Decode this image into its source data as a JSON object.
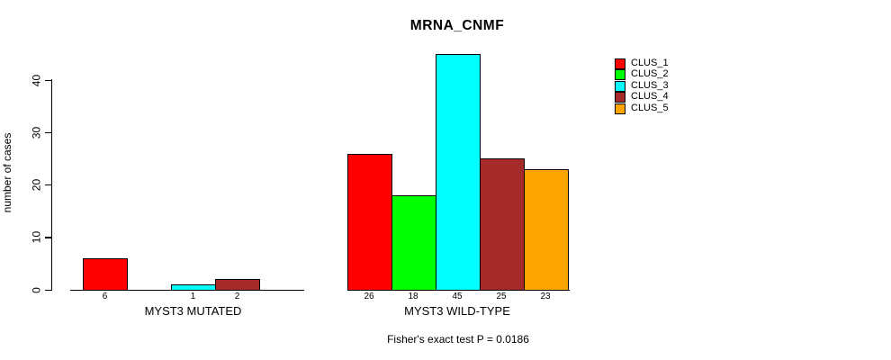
{
  "chart_data": {
    "type": "bar",
    "title": "MRNA_CNMF",
    "ylabel": "number of cases",
    "xlabel": "",
    "ylim": [
      0,
      46
    ],
    "yticks": [
      0,
      10,
      20,
      30,
      40
    ],
    "grid": false,
    "legend_position": "right",
    "legend": [
      {
        "label": "CLUS_1",
        "color": "#FF0000"
      },
      {
        "label": "CLUS_2",
        "color": "#00FF00"
      },
      {
        "label": "CLUS_3",
        "color": "#00FFFF"
      },
      {
        "label": "CLUS_4",
        "color": "#A52A2A"
      },
      {
        "label": "CLUS_5",
        "color": "#FFA500"
      }
    ],
    "groups": [
      {
        "label": "MYST3 MUTATED",
        "values": [
          6,
          0,
          1,
          2,
          0
        ],
        "bar_labels": [
          "6",
          "",
          "1",
          "2",
          ""
        ]
      },
      {
        "label": "MYST3 WILD-TYPE",
        "values": [
          26,
          18,
          45,
          25,
          23
        ],
        "bar_labels": [
          "26",
          "18",
          "45",
          "25",
          "23"
        ]
      }
    ],
    "annotation": "Fisher's exact test P = 0.0186",
    "colors": {
      "background": "#FFFFFF",
      "axis": "#000000",
      "text": "#000000",
      "bar_border": "#000000"
    }
  }
}
